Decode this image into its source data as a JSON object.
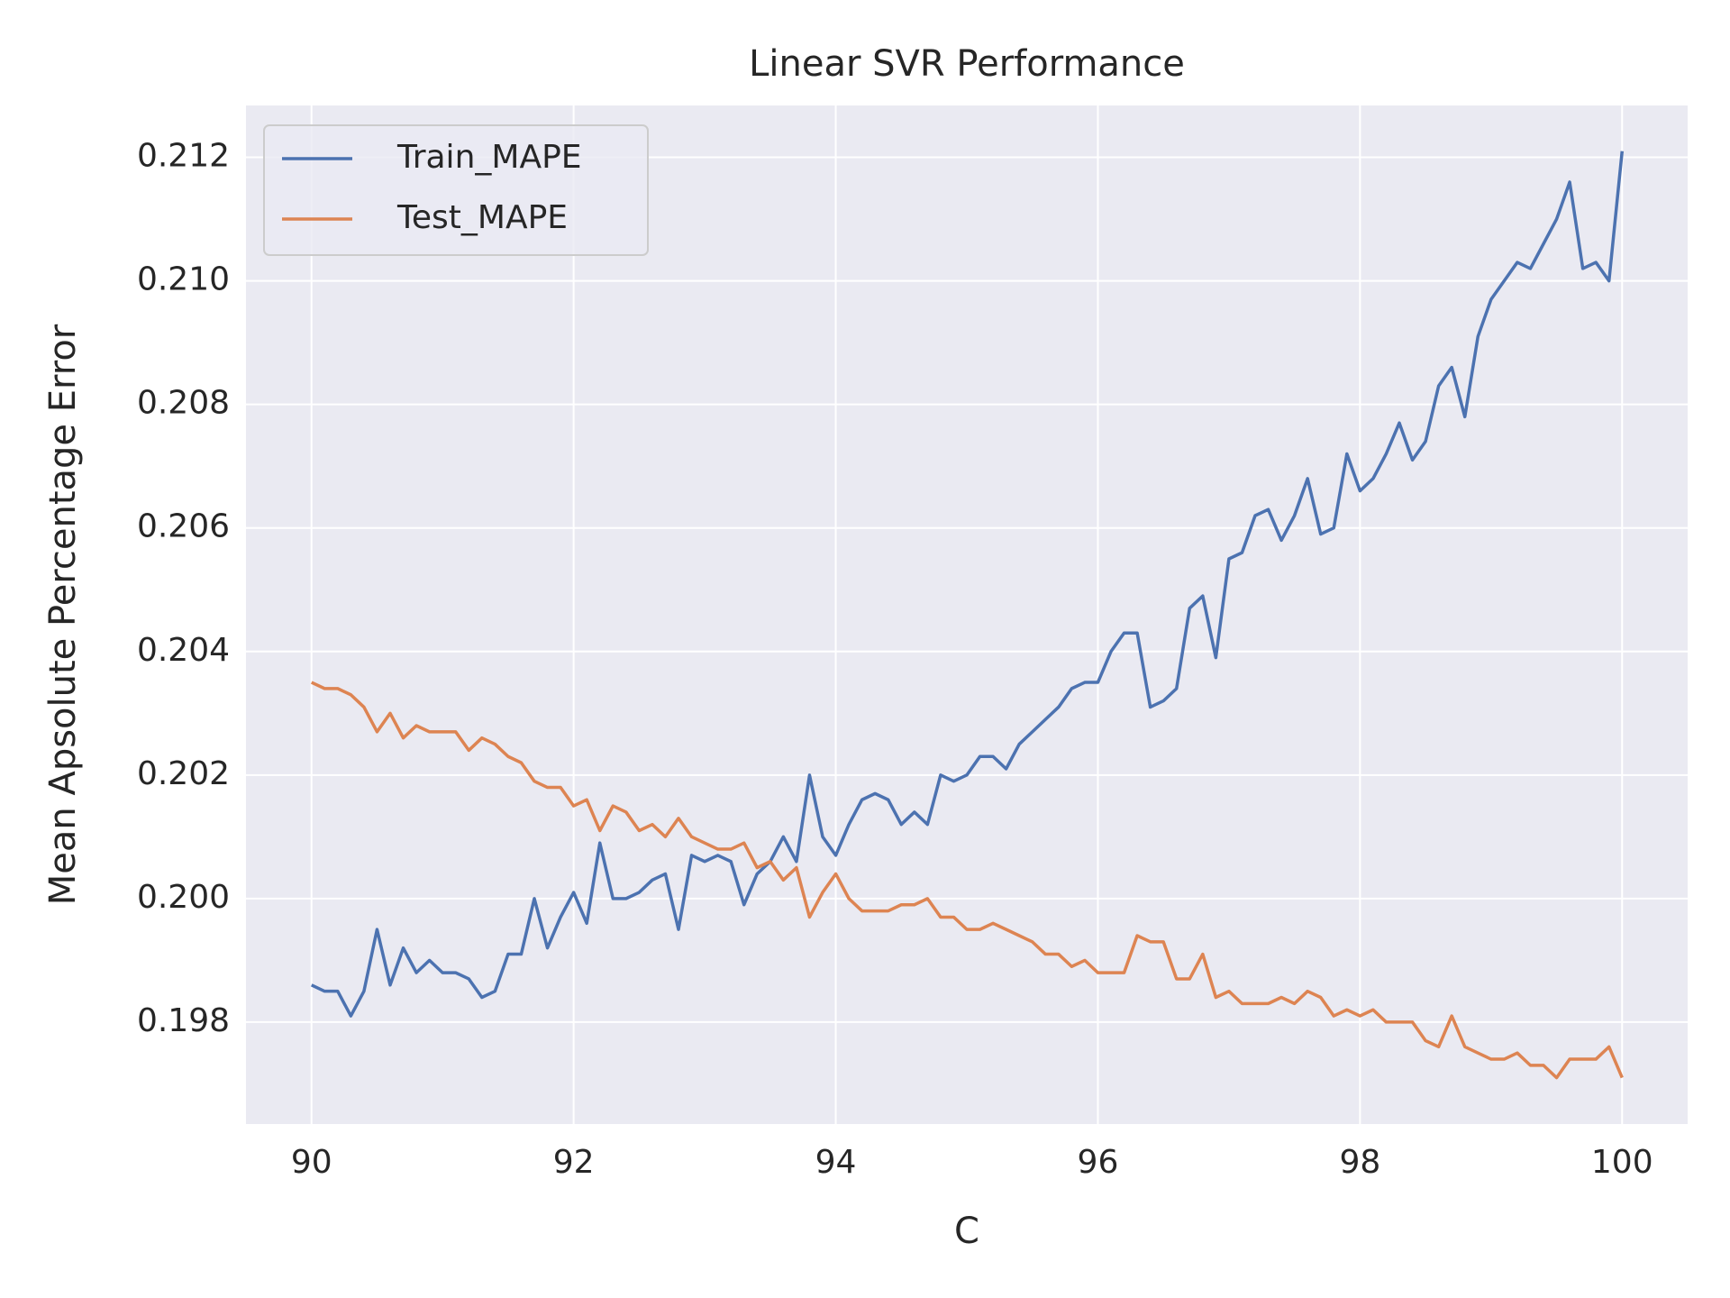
{
  "chart_data": {
    "type": "line",
    "title": "Linear SVR Performance",
    "xlabel": "C",
    "ylabel": "Mean Apsolute Percentage Error",
    "x": [
      90.0,
      90.1,
      90.2,
      90.3,
      90.4,
      90.5,
      90.6,
      90.7,
      90.8,
      90.9,
      91.0,
      91.1,
      91.2,
      91.3,
      91.4,
      91.5,
      91.6,
      91.7,
      91.8,
      91.9,
      92.0,
      92.1,
      92.2,
      92.3,
      92.4,
      92.5,
      92.6,
      92.7,
      92.8,
      92.9,
      93.0,
      93.1,
      93.2,
      93.3,
      93.4,
      93.5,
      93.6,
      93.7,
      93.8,
      93.9,
      94.0,
      94.1,
      94.2,
      94.3,
      94.4,
      94.5,
      94.6,
      94.7,
      94.8,
      94.9,
      95.0,
      95.1,
      95.2,
      95.3,
      95.4,
      95.5,
      95.6,
      95.7,
      95.8,
      95.9,
      96.0,
      96.1,
      96.2,
      96.3,
      96.4,
      96.5,
      96.6,
      96.7,
      96.8,
      96.9,
      97.0,
      97.1,
      97.2,
      97.3,
      97.4,
      97.5,
      97.6,
      97.7,
      97.8,
      97.9,
      98.0,
      98.1,
      98.2,
      98.3,
      98.4,
      98.5,
      98.6,
      98.7,
      98.8,
      98.9,
      99.0,
      99.1,
      99.2,
      99.3,
      99.4,
      99.5,
      99.6,
      99.7,
      99.8,
      99.9,
      100.0
    ],
    "series": [
      {
        "name": "Train_MAPE",
        "color": "#4c72b0",
        "values": [
          0.1986,
          0.1985,
          0.1985,
          0.1981,
          0.1985,
          0.1995,
          0.1986,
          0.1992,
          0.1988,
          0.199,
          0.1988,
          0.1988,
          0.1987,
          0.1984,
          0.1985,
          0.1991,
          0.1991,
          0.2,
          0.1992,
          0.1997,
          0.2001,
          0.1996,
          0.2009,
          0.2,
          0.2,
          0.2001,
          0.2003,
          0.2004,
          0.1995,
          0.2007,
          0.2006,
          0.2007,
          0.2006,
          0.1999,
          0.2004,
          0.2006,
          0.201,
          0.2006,
          0.202,
          0.201,
          0.2007,
          0.2012,
          0.2016,
          0.2017,
          0.2016,
          0.2012,
          0.2014,
          0.2012,
          0.202,
          0.2019,
          0.202,
          0.2023,
          0.2023,
          0.2021,
          0.2025,
          0.2027,
          0.2029,
          0.2031,
          0.2034,
          0.2035,
          0.2035,
          0.204,
          0.2043,
          0.2043,
          0.2031,
          0.2032,
          0.2034,
          0.2047,
          0.2049,
          0.2039,
          0.2055,
          0.2056,
          0.2062,
          0.2063,
          0.2058,
          0.2062,
          0.2068,
          0.2059,
          0.206,
          0.2072,
          0.2066,
          0.2068,
          0.2072,
          0.2077,
          0.2071,
          0.2074,
          0.2083,
          0.2086,
          0.2078,
          0.2091,
          0.2097,
          0.21,
          0.2103,
          0.2102,
          0.2106,
          0.211,
          0.2116,
          0.2102,
          0.2103,
          0.21,
          0.2121
        ]
      },
      {
        "name": "Test_MAPE",
        "color": "#dd8452",
        "values": [
          0.2035,
          0.2034,
          0.2034,
          0.2033,
          0.2031,
          0.2027,
          0.203,
          0.2026,
          0.2028,
          0.2027,
          0.2027,
          0.2027,
          0.2024,
          0.2026,
          0.2025,
          0.2023,
          0.2022,
          0.2019,
          0.2018,
          0.2018,
          0.2015,
          0.2016,
          0.2011,
          0.2015,
          0.2014,
          0.2011,
          0.2012,
          0.201,
          0.2013,
          0.201,
          0.2009,
          0.2008,
          0.2008,
          0.2009,
          0.2005,
          0.2006,
          0.2003,
          0.2005,
          0.1997,
          0.2001,
          0.2004,
          0.2,
          0.1998,
          0.1998,
          0.1998,
          0.1999,
          0.1999,
          0.2,
          0.1997,
          0.1997,
          0.1995,
          0.1995,
          0.1996,
          0.1995,
          0.1994,
          0.1993,
          0.1991,
          0.1991,
          0.1989,
          0.199,
          0.1988,
          0.1988,
          0.1988,
          0.1994,
          0.1993,
          0.1993,
          0.1987,
          0.1987,
          0.1991,
          0.1984,
          0.1985,
          0.1983,
          0.1983,
          0.1983,
          0.1984,
          0.1983,
          0.1985,
          0.1984,
          0.1981,
          0.1982,
          0.1981,
          0.1982,
          0.198,
          0.198,
          0.198,
          0.1977,
          0.1976,
          0.1981,
          0.1976,
          0.1975,
          0.1974,
          0.1974,
          0.1975,
          0.1973,
          0.1973,
          0.1971,
          0.1974,
          0.1974,
          0.1974,
          0.1976,
          0.1971
        ]
      }
    ],
    "xlim": [
      89.5,
      100.5
    ],
    "xticks": [
      90,
      92,
      94,
      96,
      98,
      100
    ],
    "ylim": [
      0.19635,
      0.21284
    ],
    "yticks": [
      0.198,
      {
        "value": 0.2,
        "label": "0.200"
      },
      0.202,
      0.204,
      0.206,
      0.208,
      {
        "value": 0.21,
        "label": "0.210"
      },
      0.212
    ],
    "grid": true,
    "legend": "upper left"
  }
}
